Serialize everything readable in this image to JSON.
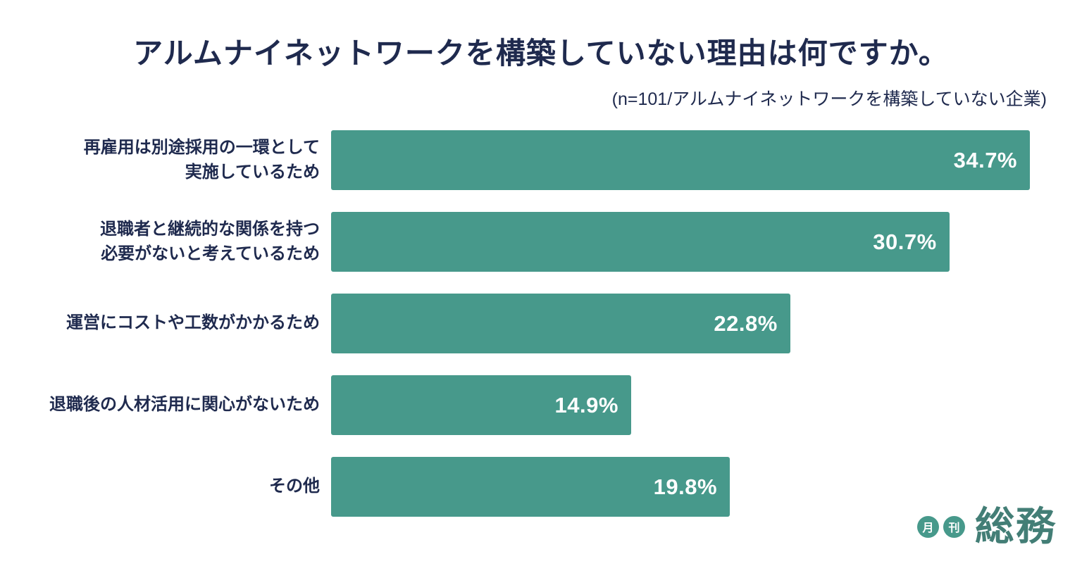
{
  "chart_data": {
    "type": "bar",
    "orientation": "horizontal",
    "title": "アルムナイネットワークを構築していない理由は何ですか。",
    "subtitle": "(n=101/アルムナイネットワークを構築していない企業)",
    "categories": [
      "再雇用は別途採用の一環として\n実施しているため",
      "退職者と継続的な関係を持つ\n必要がないと考えているため",
      "運営にコストや工数がかかるため",
      "退職後の人材活用に関心がないため",
      "その他"
    ],
    "values": [
      34.7,
      30.7,
      22.8,
      14.9,
      19.8
    ],
    "value_labels": [
      "34.7%",
      "30.7%",
      "22.8%",
      "14.9%",
      "19.8%"
    ],
    "xlabel": "",
    "ylabel": "",
    "xlim": [
      0,
      34.7
    ],
    "grid": false,
    "legend": "none",
    "bar_color": "#47998b",
    "label_color": "#1f2a4e",
    "value_text_color": "#ffffff"
  },
  "logo": {
    "badge1": "月",
    "badge2": "刊",
    "wordmark": "総務",
    "badge_color": "#47998b"
  }
}
